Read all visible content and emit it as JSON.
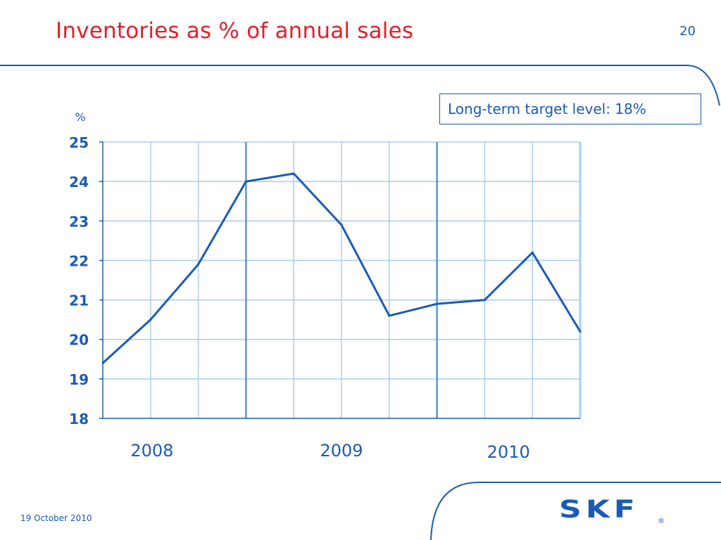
{
  "slide": {
    "title": "Inventories as % of annual sales",
    "page_number": "20",
    "date": "19 October 2010",
    "target_note": "Long-term target level: 18%",
    "logo_text": "SKF",
    "logo_mark": "®"
  },
  "colors": {
    "title": "#e3202b",
    "accent": "#1a5bb5",
    "grid": "#a9cdee",
    "series": "#1a5bb5"
  },
  "chart_data": {
    "type": "line",
    "title": "",
    "xlabel": "",
    "ylabel": "%",
    "ylim": [
      18,
      25
    ],
    "yticks": [
      25,
      24,
      23,
      22,
      21,
      20,
      19,
      18
    ],
    "year_labels": [
      "2008",
      "2009",
      "2010"
    ],
    "quarters_per_year": 4,
    "grid": true,
    "series": [
      {
        "values": [
          19.4,
          20.5,
          21.9,
          24.0,
          24.2,
          22.9,
          20.6,
          20.9,
          21.0,
          22.2,
          20.2
        ]
      }
    ]
  }
}
